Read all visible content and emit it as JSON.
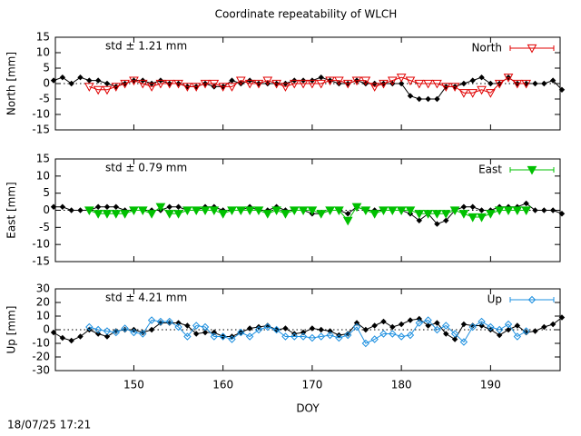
{
  "title": "Coordinate repeatability of WLCH",
  "timestamp": "18/07/25 17:21",
  "chart_data": [
    {
      "type": "line",
      "ylabel": "North [mm]",
      "annotation": "std ± 1.21 mm",
      "annotation_color": "#e00000",
      "xlim": [
        141.2,
        197.8
      ],
      "ylim": [
        -15,
        15
      ],
      "yticks": [
        -15,
        -10,
        -5,
        0,
        5,
        10,
        15
      ],
      "xticks": [
        150,
        160,
        170,
        180,
        190
      ],
      "xtick_labels": false,
      "zero_line": true,
      "series": [
        {
          "color": "#000000",
          "marker": "diamond-filled",
          "x": [
            141,
            142,
            143,
            144,
            145,
            146,
            147,
            148,
            149,
            150,
            151,
            152,
            153,
            154,
            155,
            156,
            157,
            158,
            159,
            160,
            161,
            162,
            163,
            164,
            165,
            166,
            167,
            168,
            169,
            170,
            171,
            172,
            173,
            174,
            175,
            176,
            177,
            178,
            179,
            180,
            181,
            182,
            183,
            184,
            185,
            186,
            187,
            188,
            189,
            190,
            191,
            192,
            193,
            194,
            195,
            196,
            197,
            198
          ],
          "values": [
            1,
            2,
            0,
            2,
            1,
            1,
            0,
            -1,
            0,
            1,
            1,
            0,
            1,
            0,
            0,
            -1,
            -1,
            0,
            -1,
            -1,
            1,
            0,
            1,
            0,
            0,
            0,
            0,
            1,
            1,
            1,
            2,
            1,
            0,
            0,
            1,
            0,
            0,
            0,
            0,
            0,
            -4,
            -5,
            -5,
            -5,
            -1,
            -1,
            0,
            1,
            2,
            0,
            0,
            2,
            0,
            0,
            0,
            0,
            1,
            -2
          ]
        },
        {
          "name": "North",
          "color": "#e00000",
          "marker": "triangle-open",
          "x": [
            145,
            146,
            147,
            148,
            149,
            150,
            151,
            152,
            153,
            154,
            155,
            156,
            157,
            158,
            159,
            160,
            161,
            162,
            163,
            164,
            165,
            166,
            167,
            168,
            169,
            170,
            171,
            172,
            173,
            174,
            175,
            176,
            177,
            178,
            179,
            180,
            181,
            182,
            183,
            184,
            185,
            186,
            187,
            188,
            189,
            190,
            191,
            192,
            193,
            194
          ],
          "values": [
            -1,
            -2,
            -2,
            -1,
            0,
            1,
            0,
            -1,
            0,
            0,
            0,
            -1,
            -1,
            0,
            0,
            -1,
            -1,
            1,
            0,
            0,
            1,
            0,
            -1,
            0,
            0,
            0,
            0,
            1,
            1,
            0,
            1,
            1,
            -1,
            0,
            1,
            2,
            1,
            0,
            0,
            0,
            -1,
            -1,
            -3,
            -3,
            -2,
            -3,
            0,
            2,
            0,
            0
          ]
        }
      ]
    },
    {
      "type": "line",
      "ylabel": "East [mm]",
      "annotation": "std ± 0.79 mm",
      "annotation_color": "#00c000",
      "xlim": [
        141.2,
        197.8
      ],
      "ylim": [
        -15,
        15
      ],
      "yticks": [
        -15,
        -10,
        -5,
        0,
        5,
        10,
        15
      ],
      "xticks": [
        150,
        160,
        170,
        180,
        190
      ],
      "xtick_labels": false,
      "zero_line": true,
      "series": [
        {
          "color": "#000000",
          "marker": "diamond-filled",
          "x": [
            141,
            142,
            143,
            144,
            145,
            146,
            147,
            148,
            149,
            150,
            151,
            152,
            153,
            154,
            155,
            156,
            157,
            158,
            159,
            160,
            161,
            162,
            163,
            164,
            165,
            166,
            167,
            168,
            169,
            170,
            171,
            172,
            173,
            174,
            175,
            176,
            177,
            178,
            179,
            180,
            181,
            182,
            183,
            184,
            185,
            186,
            187,
            188,
            189,
            190,
            191,
            192,
            193,
            194,
            195,
            196,
            197,
            198
          ],
          "values": [
            1,
            1,
            0,
            0,
            0,
            1,
            1,
            1,
            0,
            0,
            0,
            0,
            0,
            1,
            1,
            0,
            0,
            1,
            1,
            0,
            0,
            0,
            1,
            0,
            0,
            1,
            0,
            0,
            0,
            -1,
            -1,
            0,
            0,
            -1,
            1,
            0,
            0,
            0,
            0,
            0,
            -1,
            -3,
            -1,
            -4,
            -3,
            0,
            1,
            1,
            0,
            0,
            1,
            1,
            1,
            2,
            0,
            0,
            0,
            -1
          ]
        },
        {
          "name": "East",
          "color": "#00c000",
          "marker": "triangle-filled",
          "x": [
            145,
            146,
            147,
            148,
            149,
            150,
            151,
            152,
            153,
            154,
            155,
            156,
            157,
            158,
            159,
            160,
            161,
            162,
            163,
            164,
            165,
            166,
            167,
            168,
            169,
            170,
            171,
            172,
            173,
            174,
            175,
            176,
            177,
            178,
            179,
            180,
            181,
            182,
            183,
            184,
            185,
            186,
            187,
            188,
            189,
            190,
            191,
            192,
            193,
            194
          ],
          "values": [
            0,
            -1,
            -1,
            -1,
            -1,
            0,
            0,
            -1,
            1,
            -1,
            -1,
            0,
            0,
            0,
            0,
            -1,
            0,
            0,
            0,
            0,
            -1,
            0,
            -1,
            0,
            0,
            0,
            -1,
            0,
            0,
            -3,
            1,
            0,
            -1,
            0,
            0,
            0,
            0,
            -1,
            -1,
            -1,
            -1,
            0,
            -1,
            -2,
            -2,
            -1,
            0,
            0,
            0,
            0
          ]
        }
      ]
    },
    {
      "type": "line",
      "ylabel": "Up [mm]",
      "xlabel": "DOY",
      "annotation": "std ± 4.21 mm",
      "annotation_color": "#1e90e0",
      "xlim": [
        141.2,
        197.8
      ],
      "ylim": [
        -30,
        30
      ],
      "yticks": [
        -30,
        -20,
        -10,
        0,
        10,
        20,
        30
      ],
      "xticks": [
        150,
        160,
        170,
        180,
        190
      ],
      "xtick_labels": true,
      "zero_line": true,
      "series": [
        {
          "color": "#000000",
          "marker": "diamond-filled",
          "x": [
            141,
            142,
            143,
            144,
            145,
            146,
            147,
            148,
            149,
            150,
            151,
            152,
            153,
            154,
            155,
            156,
            157,
            158,
            159,
            160,
            161,
            162,
            163,
            164,
            165,
            166,
            167,
            168,
            169,
            170,
            171,
            172,
            173,
            174,
            175,
            176,
            177,
            178,
            179,
            180,
            181,
            182,
            183,
            184,
            185,
            186,
            187,
            188,
            189,
            190,
            191,
            192,
            193,
            194,
            195,
            196,
            197,
            198
          ],
          "values": [
            -2,
            -6,
            -8,
            -5,
            0,
            -3,
            -5,
            -1,
            0,
            0,
            -2,
            0,
            5,
            5,
            5,
            3,
            -3,
            -2,
            -2,
            -5,
            -5,
            -2,
            1,
            2,
            3,
            0,
            1,
            -3,
            -2,
            1,
            0,
            -1,
            -4,
            -3,
            5,
            0,
            3,
            6,
            2,
            4,
            7,
            8,
            3,
            5,
            -3,
            -7,
            4,
            3,
            3,
            0,
            -4,
            0,
            3,
            -2,
            -1,
            2,
            4,
            9
          ]
        },
        {
          "name": "Up",
          "color": "#1e90e0",
          "marker": "diamond-open",
          "x": [
            145,
            146,
            147,
            148,
            149,
            150,
            151,
            152,
            153,
            154,
            155,
            156,
            157,
            158,
            159,
            160,
            161,
            162,
            163,
            164,
            165,
            166,
            167,
            168,
            169,
            170,
            171,
            172,
            173,
            174,
            175,
            176,
            177,
            178,
            179,
            180,
            181,
            182,
            183,
            184,
            185,
            186,
            187,
            188,
            189,
            190,
            191,
            192,
            193,
            194
          ],
          "values": [
            2,
            0,
            -1,
            -2,
            1,
            -2,
            -3,
            7,
            6,
            6,
            2,
            -5,
            3,
            2,
            -5,
            -5,
            -7,
            -2,
            -5,
            0,
            2,
            0,
            -5,
            -5,
            -5,
            -6,
            -5,
            -4,
            -6,
            -4,
            2,
            -10,
            -7,
            -3,
            -3,
            -5,
            -4,
            5,
            7,
            0,
            3,
            -3,
            -9,
            2,
            6,
            2,
            0,
            4,
            -5,
            -1
          ]
        }
      ]
    }
  ]
}
